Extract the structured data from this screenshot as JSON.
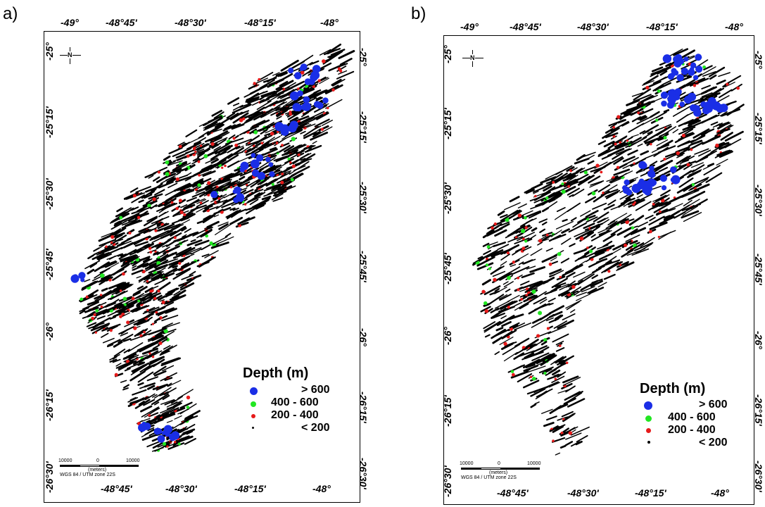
{
  "colors": {
    "gt600": "#1a2ee6",
    "r400_600": "#22e622",
    "r200_400": "#e61a1a",
    "lt200": "#000000"
  },
  "panels": [
    {
      "id": "a",
      "letter": "a)",
      "top_ticks": [
        "-49°",
        "-48°45'",
        "-48°30'",
        "-48°15'",
        "-48°"
      ],
      "bottom_ticks": [
        "-48°45'",
        "-48°30'",
        "-48°15'",
        "-48°"
      ],
      "left_ticks": [
        "-25°",
        "-25°15'",
        "-25°30'",
        "-25°45'",
        "-26°",
        "-26°15'",
        "-26°30'"
      ],
      "right_ticks": [
        "-25°",
        "-25°15'",
        "-25°30'",
        "-25°45'",
        "-26°",
        "-26°15'",
        "-26°30'"
      ],
      "north_label": "N",
      "scale": {
        "left_label": "10000",
        "mid_label": "0",
        "right_label": "10000",
        "unit": "(meters)",
        "projection": "WGS 84 / UTM zone 22S"
      },
      "legend": {
        "title": "Depth (m)",
        "rows": [
          {
            "key": "gt600",
            "text": ">  600"
          },
          {
            "key": "r400_600",
            "text": "400   -  600"
          },
          {
            "key": "r200_400",
            "text": "200   -  400"
          },
          {
            "key": "lt200",
            "text": "<  200"
          }
        ]
      }
    },
    {
      "id": "b",
      "letter": "b)",
      "top_ticks": [
        "-49°",
        "-48°45'",
        "-48°30'",
        "-48°15'",
        "-48°"
      ],
      "bottom_ticks": [
        "-48°45'",
        "-48°30'",
        "-48°15'",
        "-48°"
      ],
      "left_ticks": [
        "-25°",
        "-25°15'",
        "-25°30'",
        "-25°45'",
        "-26°",
        "-26°15'",
        "-26°30'"
      ],
      "right_ticks": [
        "-25°",
        "-25°15'",
        "-25°30'",
        "-25°45'",
        "-26°",
        "-26°15'",
        "-26°30'"
      ],
      "north_label": "N",
      "scale": {
        "left_label": "10000",
        "mid_label": "0",
        "right_label": "10000",
        "unit": "(meters)",
        "projection": "WGS 84 / UTM zone 22S"
      },
      "legend": {
        "title": "Depth (m)",
        "rows": [
          {
            "key": "gt600",
            "text": ">  600"
          },
          {
            "key": "r400_600",
            "text": "400   -  600"
          },
          {
            "key": "r200_400",
            "text": "200   -  400"
          },
          {
            "key": "lt200",
            "text": "<  200"
          }
        ]
      }
    }
  ]
}
